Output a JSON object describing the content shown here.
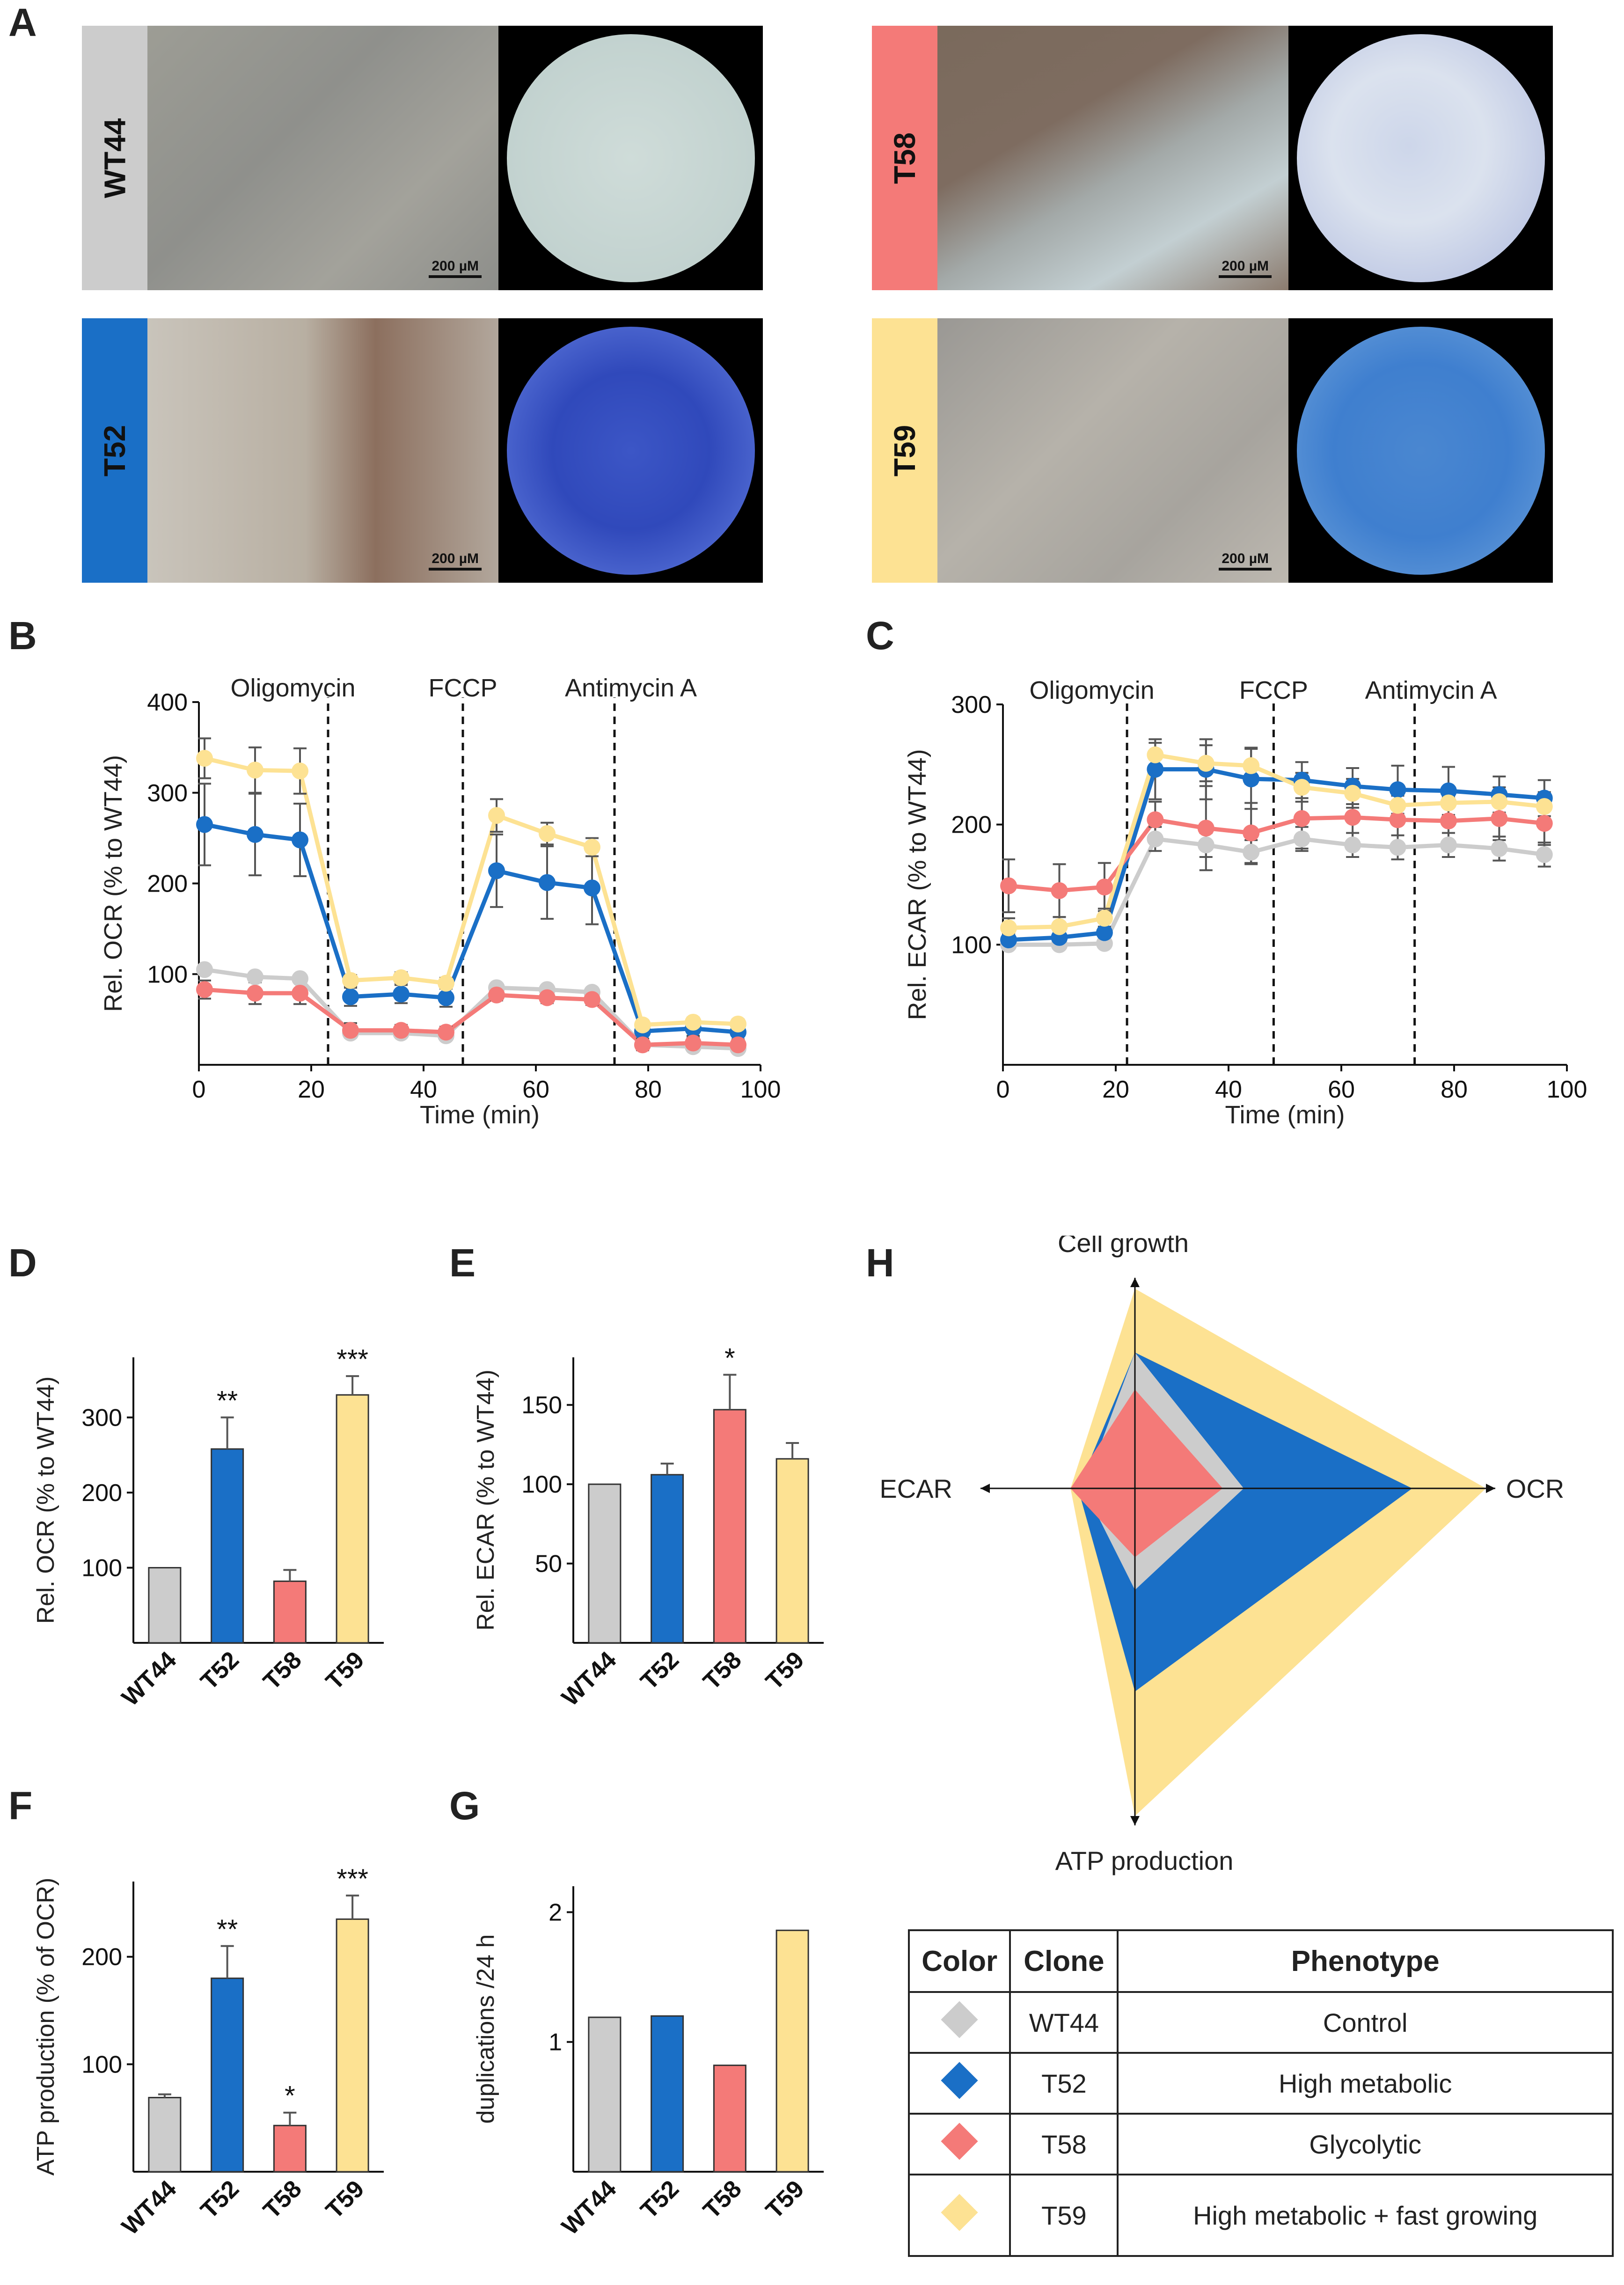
{
  "panels": {
    "A": "A",
    "B": "B",
    "C": "C",
    "D": "D",
    "E": "E",
    "F": "F",
    "G": "G",
    "H": "H"
  },
  "colors": {
    "WT44": "#cccccc",
    "T52": "#1a6fc6",
    "T58": "#f47a78",
    "T59": "#fde293"
  },
  "clones": [
    {
      "name": "WT44",
      "scale": "200 µM",
      "color": "#cccccc"
    },
    {
      "name": "T58",
      "scale": "200 µM",
      "color": "#f47a78"
    },
    {
      "name": "T52",
      "scale": "200 µM",
      "color": "#1a6fc6"
    },
    {
      "name": "T59",
      "scale": "200 µM",
      "color": "#fde293"
    }
  ],
  "chart_data": [
    {
      "id": "B",
      "type": "line",
      "xlabel": "Time (min)",
      "ylabel": "Rel. OCR (% to WT44)",
      "xlim": [
        0,
        100
      ],
      "ylim": [
        0,
        400
      ],
      "xticks": [
        0,
        20,
        40,
        60,
        80,
        100
      ],
      "yticks": [
        100,
        200,
        300,
        400
      ],
      "x": [
        1,
        10,
        18,
        27,
        36,
        44,
        53,
        62,
        70,
        79,
        88,
        96
      ],
      "markers": [
        {
          "x": 23,
          "label": "Oligomycin"
        },
        {
          "x": 47,
          "label": "FCCP"
        },
        {
          "x": 74,
          "label": "Antimycin A"
        }
      ],
      "series": [
        {
          "name": "WT44",
          "color": "#cccccc",
          "values": [
            105,
            97,
            95,
            35,
            35,
            32,
            85,
            83,
            80,
            22,
            20,
            18
          ],
          "errors": [
            0,
            0,
            0,
            0,
            0,
            0,
            0,
            0,
            0,
            0,
            0,
            0
          ]
        },
        {
          "name": "T52",
          "color": "#1a6fc6",
          "values": [
            265,
            254,
            248,
            75,
            78,
            74,
            214,
            201,
            195,
            37,
            40,
            36
          ],
          "errors": [
            45,
            45,
            40,
            10,
            10,
            10,
            40,
            40,
            40,
            8,
            8,
            8
          ]
        },
        {
          "name": "T58",
          "color": "#f47a78",
          "values": [
            83,
            79,
            79,
            38,
            38,
            36,
            77,
            74,
            72,
            22,
            24,
            22
          ],
          "errors": [
            10,
            12,
            12,
            8,
            6,
            6,
            6,
            6,
            6,
            6,
            6,
            6
          ]
        },
        {
          "name": "T59",
          "color": "#fde293",
          "values": [
            338,
            325,
            324,
            93,
            96,
            90,
            275,
            255,
            240,
            44,
            47,
            45
          ],
          "errors": [
            22,
            25,
            25,
            6,
            6,
            6,
            18,
            12,
            10,
            5,
            5,
            5
          ]
        }
      ]
    },
    {
      "id": "C",
      "type": "line",
      "xlabel": "Time (min)",
      "ylabel": "Rel. ECAR (% to WT44)",
      "xlim": [
        0,
        100
      ],
      "ylim": [
        0,
        300
      ],
      "xticks": [
        0,
        20,
        40,
        60,
        80,
        100
      ],
      "yticks": [
        100,
        200,
        300
      ],
      "x": [
        1,
        10,
        18,
        27,
        36,
        44,
        53,
        62,
        70,
        79,
        88,
        96
      ],
      "markers": [
        {
          "x": 22,
          "label": "Oligomycin"
        },
        {
          "x": 48,
          "label": "FCCP"
        },
        {
          "x": 73,
          "label": "Antimycin A"
        }
      ],
      "series": [
        {
          "name": "WT44",
          "color": "#cccccc",
          "values": [
            100,
            100,
            101,
            188,
            183,
            177,
            188,
            183,
            181,
            183,
            180,
            175
          ],
          "errors": [
            0,
            0,
            0,
            10,
            10,
            10,
            10,
            10,
            10,
            10,
            10,
            10
          ]
        },
        {
          "name": "T52",
          "color": "#1a6fc6",
          "values": [
            104,
            106,
            110,
            246,
            246,
            238,
            237,
            232,
            229,
            228,
            225,
            222
          ],
          "errors": [
            5,
            5,
            5,
            25,
            25,
            25,
            15,
            15,
            20,
            20,
            15,
            15
          ]
        },
        {
          "name": "T58",
          "color": "#f47a78",
          "values": [
            149,
            145,
            148,
            204,
            197,
            193,
            205,
            206,
            204,
            203,
            205,
            201
          ],
          "errors": [
            22,
            22,
            20,
            15,
            35,
            25,
            25,
            20,
            20,
            20,
            18,
            18
          ]
        },
        {
          "name": "T59",
          "color": "#fde293",
          "values": [
            114,
            115,
            122,
            258,
            251,
            249,
            231,
            226,
            216,
            218,
            219,
            215
          ],
          "errors": [
            8,
            8,
            8,
            10,
            15,
            15,
            12,
            12,
            12,
            12,
            12,
            12
          ]
        }
      ]
    },
    {
      "id": "D",
      "type": "bar",
      "ylabel": "Rel. OCR (% to WT44)",
      "ylim": [
        0,
        380
      ],
      "yticks": [
        100,
        200,
        300
      ],
      "categories": [
        "WT44",
        "T52",
        "T58",
        "T59"
      ],
      "values": [
        100,
        258,
        82,
        330
      ],
      "errors": [
        0,
        42,
        15,
        25
      ],
      "significance": [
        "",
        "**",
        "",
        "***"
      ]
    },
    {
      "id": "E",
      "type": "bar",
      "ylabel": "Rel. ECAR (% to WT44)",
      "ylim": [
        0,
        180
      ],
      "yticks": [
        50,
        100,
        150
      ],
      "categories": [
        "WT44",
        "T52",
        "T58",
        "T59"
      ],
      "values": [
        100,
        106,
        147,
        116
      ],
      "errors": [
        0,
        7,
        22,
        10
      ],
      "significance": [
        "",
        "",
        "*",
        ""
      ]
    },
    {
      "id": "F",
      "type": "bar",
      "ylabel": "ATP production (% of OCR)",
      "ylim": [
        0,
        270
      ],
      "yticks": [
        100,
        200
      ],
      "categories": [
        "WT44",
        "T52",
        "T58",
        "T59"
      ],
      "values": [
        69,
        180,
        43,
        235
      ],
      "errors": [
        3,
        30,
        12,
        22
      ],
      "significance": [
        "",
        "**",
        "*",
        "***"
      ]
    },
    {
      "id": "G",
      "type": "bar",
      "ylabel": "duplications /24 h",
      "ylim": [
        0,
        2.2
      ],
      "yticks": [
        1,
        2
      ],
      "categories": [
        "WT44",
        "T52",
        "T58",
        "T59"
      ],
      "values": [
        1.19,
        1.2,
        0.82,
        1.86
      ],
      "errors": [
        0,
        0,
        0,
        0
      ],
      "significance": [
        "",
        "",
        "",
        ""
      ]
    },
    {
      "id": "H",
      "type": "radar",
      "axes": [
        "Cell growth",
        "OCR",
        "ATP production",
        "ECAR"
      ],
      "series": [
        {
          "name": "T59",
          "color": "#fde293",
          "values": [
            0.97,
            1.0,
            1.0,
            0.43
          ]
        },
        {
          "name": "T52",
          "color": "#1a6fc6",
          "values": [
            0.66,
            0.79,
            0.62,
            0.38
          ]
        },
        {
          "name": "WT44",
          "color": "#cccccc",
          "values": [
            0.66,
            0.31,
            0.31,
            0.34
          ]
        },
        {
          "name": "T58",
          "color": "#f47a78",
          "values": [
            0.48,
            0.25,
            0.21,
            0.43
          ]
        }
      ]
    }
  ],
  "legend_table": {
    "headers": [
      "Color",
      "Clone",
      "Phenotype"
    ],
    "rows": [
      {
        "color": "#cccccc",
        "clone": "WT44",
        "phenotype": "Control"
      },
      {
        "color": "#1a6fc6",
        "clone": "T52",
        "phenotype": "High metabolic"
      },
      {
        "color": "#f47a78",
        "clone": "T58",
        "phenotype": "Glycolytic"
      },
      {
        "color": "#fde293",
        "clone": "T59",
        "phenotype": "High metabolic + fast growing"
      }
    ]
  }
}
